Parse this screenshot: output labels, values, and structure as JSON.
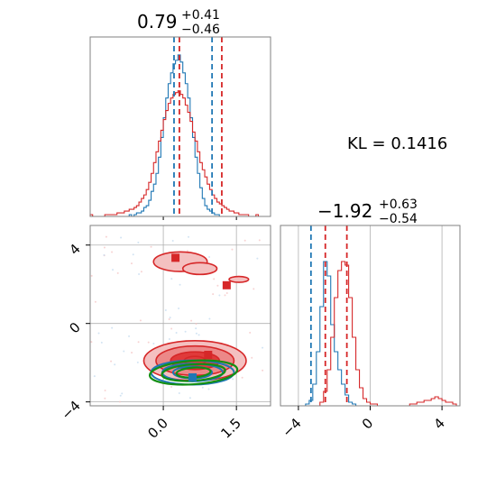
{
  "colors": {
    "red": "#d62728",
    "blue": "#1f77b4",
    "green": "#138f13",
    "grid": "#b0b0b0",
    "frame": "#808080",
    "fill_light": "#f4c0c0",
    "fill_mid": "#ec8888",
    "fill_dark": "#e03a3a"
  },
  "chart_data": [
    {
      "type": "histogram",
      "panel": "top-left (parameter 1 marginal)",
      "title": {
        "value": "0.79",
        "sup": "+0.41",
        "sub": "−0.46"
      },
      "xlim": [
        -1.5,
        2.2
      ],
      "ylim": [
        0,
        100
      ],
      "series": [
        {
          "color": "blue",
          "bin_edges_start": -1.5,
          "bin_width": 0.05,
          "counts": [
            0,
            0,
            0,
            0,
            0,
            0,
            0,
            0,
            0,
            0,
            0,
            0,
            0,
            0,
            0,
            0,
            1,
            0,
            1,
            2,
            2,
            3,
            5,
            6,
            9,
            14,
            18,
            24,
            33,
            44,
            55,
            66,
            74,
            80,
            85,
            87,
            90,
            86,
            80,
            74,
            66,
            55,
            44,
            33,
            24,
            16,
            10,
            6,
            4,
            3,
            2,
            1,
            1,
            0,
            0,
            0,
            0,
            0,
            0,
            0,
            0,
            0,
            0,
            0,
            0,
            0,
            0,
            0,
            0,
            0,
            0,
            0,
            0,
            0
          ]
        },
        {
          "color": "red",
          "bin_edges_start": -1.5,
          "bin_width": 0.05,
          "counts": [
            1,
            0,
            0,
            0,
            0,
            0,
            1,
            1,
            1,
            1,
            1,
            2,
            2,
            2,
            3,
            3,
            4,
            4,
            5,
            6,
            8,
            10,
            12,
            15,
            19,
            24,
            30,
            36,
            42,
            48,
            54,
            59,
            63,
            66,
            68,
            69,
            70,
            68,
            66,
            62,
            58,
            53,
            47,
            42,
            36,
            30,
            26,
            22,
            18,
            15,
            12,
            10,
            8,
            7,
            6,
            5,
            4,
            3,
            3,
            2,
            2,
            1,
            1,
            1,
            1,
            0,
            0,
            0,
            1,
            0,
            0,
            0,
            0,
            0
          ]
        }
      ],
      "quantile_lines": {
        "blue": [
          0.22,
          1.0
        ],
        "red": [
          0.33,
          1.2
        ]
      }
    },
    {
      "type": "histogram",
      "panel": "bottom-right (parameter 2 marginal)",
      "title": {
        "value": "−1.92",
        "sup": "+0.63",
        "sub": "−0.54"
      },
      "xlim": [
        -5.0,
        5.0
      ],
      "ylim": [
        0,
        100
      ],
      "xticks": [
        -4,
        0,
        4
      ],
      "xtick_labels": [
        "−4",
        "0",
        "4"
      ],
      "series": [
        {
          "color": "blue",
          "bin_edges_start": -5.0,
          "bin_width": 0.2,
          "counts": [
            0,
            0,
            0,
            0,
            0,
            0,
            0,
            1,
            3,
            12,
            30,
            55,
            80,
            72,
            45,
            30,
            20,
            12,
            6,
            2,
            1,
            0,
            0,
            0,
            0,
            0,
            0,
            0,
            0,
            0,
            0,
            0,
            0,
            0,
            0,
            0,
            0,
            0,
            0,
            0,
            0,
            0,
            0,
            0,
            0,
            0,
            0,
            0,
            0,
            0
          ]
        },
        {
          "color": "red",
          "bin_edges_start": -5.0,
          "bin_width": 0.2,
          "counts": [
            0,
            0,
            0,
            0,
            0,
            0,
            0,
            0,
            0,
            0,
            0,
            2,
            8,
            20,
            38,
            60,
            75,
            80,
            78,
            60,
            38,
            20,
            10,
            4,
            2,
            1,
            1,
            0,
            0,
            0,
            0,
            0,
            0,
            0,
            0,
            0,
            1,
            1,
            2,
            2,
            3,
            3,
            4,
            5,
            4,
            3,
            2,
            2,
            1,
            0
          ]
        }
      ],
      "quantile_lines": {
        "blue": [
          -3.3
        ],
        "red": [
          -2.5,
          -1.3
        ]
      }
    },
    {
      "type": "contour",
      "panel": "bottom-left (joint parameter 1 vs parameter 2)",
      "xlim": [
        -1.5,
        2.2
      ],
      "ylim": [
        -4.2,
        5.0
      ],
      "xticks": [
        0.0,
        1.5
      ],
      "xtick_labels": [
        "0.0",
        "1.5"
      ],
      "yticks": [
        -4,
        0,
        4
      ],
      "ytick_labels": [
        "−4",
        "0",
        "4"
      ],
      "red_mode_main": {
        "cx": 0.65,
        "cy": -1.9,
        "levels": [
          [
            1.05,
            1.02
          ],
          [
            0.8,
            0.75
          ],
          [
            0.5,
            0.45
          ],
          [
            0.22,
            0.22
          ]
        ]
      },
      "red_mode_upper": [
        {
          "cx": 0.35,
          "cy": 3.15,
          "rx": 0.55,
          "ry": 0.5
        },
        {
          "cx": 0.75,
          "cy": 2.8,
          "rx": 0.35,
          "ry": 0.3
        },
        {
          "cx": 1.55,
          "cy": 2.25,
          "rx": 0.2,
          "ry": 0.15
        }
      ],
      "blue_ellipses": [
        [
          0.85,
          0.62
        ],
        [
          0.62,
          0.45
        ],
        [
          0.4,
          0.3
        ]
      ],
      "blue_center": [
        0.6,
        -2.5
      ],
      "green_ellipses": [
        [
          0.9,
          0.6
        ],
        [
          0.65,
          0.42
        ],
        [
          0.35,
          0.25
        ]
      ],
      "green_center": [
        0.62,
        -2.5
      ],
      "markers": [
        {
          "color": "red",
          "x": 0.25,
          "y": 3.35
        },
        {
          "color": "red",
          "x": 1.3,
          "y": 1.95
        },
        {
          "color": "red",
          "x": 0.92,
          "y": -1.6
        },
        {
          "color": "blue",
          "x": 0.6,
          "y": -2.75
        }
      ]
    }
  ],
  "annotation": {
    "kl_text": "KL = 0.1416"
  }
}
